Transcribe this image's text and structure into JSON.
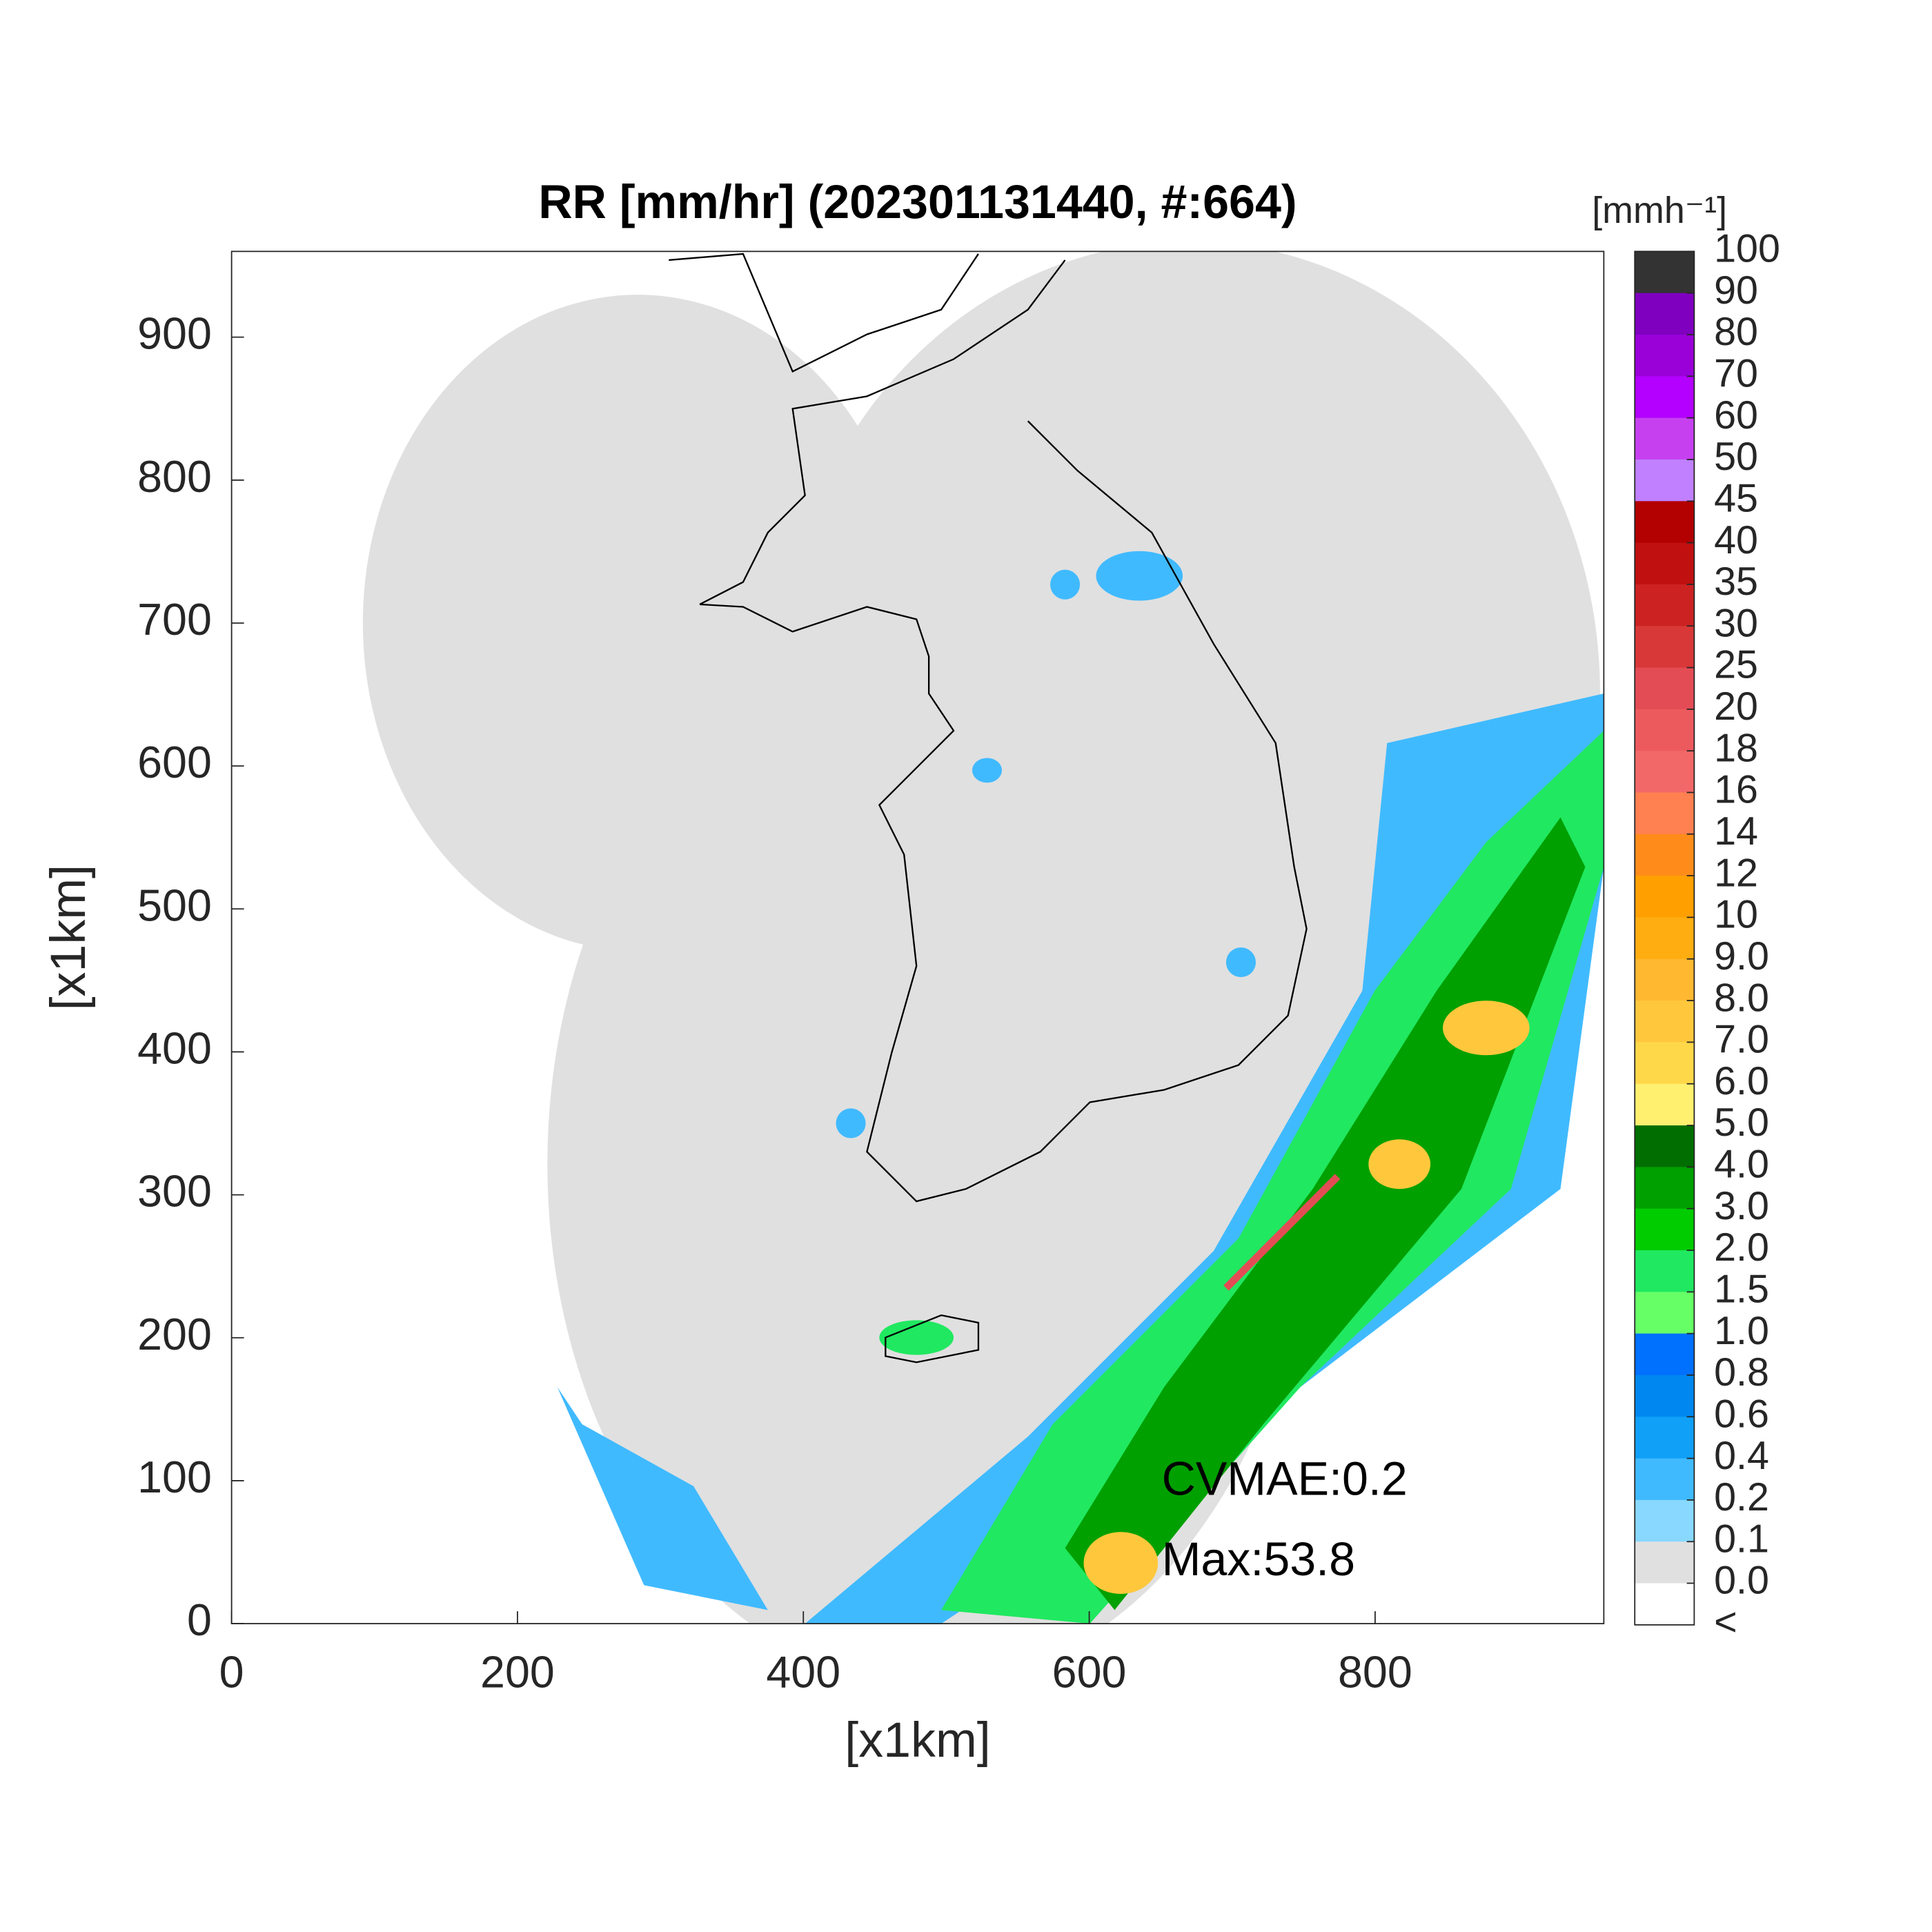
{
  "chart_data": {
    "type": "heatmap",
    "title": "RR [mm/hr] (202301131440, #:664)",
    "xlabel": "[x1km]",
    "ylabel": "[x1km]",
    "xlim": [
      0,
      960
    ],
    "ylim": [
      0,
      960
    ],
    "xticks": [
      0,
      200,
      400,
      600,
      800
    ],
    "yticks": [
      0,
      100,
      200,
      300,
      400,
      500,
      600,
      700,
      800,
      900
    ],
    "annotations": [
      "CVMAE:0.2",
      "Max:53.8"
    ],
    "colorbar": {
      "label": "[mmh⁻¹]",
      "ticks": [
        100,
        90,
        80,
        70,
        60,
        50,
        45,
        40,
        35,
        30,
        25,
        20,
        18,
        16,
        14,
        12,
        10,
        {
          "value": 9,
          "label": "9.0"
        },
        {
          "value": 8,
          "label": "8.0"
        },
        {
          "value": 7,
          "label": "7.0"
        },
        {
          "value": 6,
          "label": "6.0"
        },
        {
          "value": 5,
          "label": "5.0"
        },
        {
          "value": 4,
          "label": "4.0"
        },
        {
          "value": 3,
          "label": "3.0"
        },
        {
          "value": 2,
          "label": "2.0"
        },
        1.5,
        {
          "value": 1,
          "label": "1.0"
        },
        0.8,
        0.6,
        0.4,
        0.2,
        0.1,
        {
          "value": 0,
          "label": "0.0"
        },
        "<"
      ],
      "colors": [
        "#333333",
        "#7f00bf",
        "#9a00d8",
        "#b300ff",
        "#c740f0",
        "#c080ff",
        "#b30000",
        "#c11010",
        "#cc2222",
        "#d93838",
        "#e44c55",
        "#ed5a5e",
        "#f26868",
        "#ff8050",
        "#ff8c1a",
        "#ffa000",
        "#ffad10",
        "#ffb830",
        "#ffc83c",
        "#ffd84a",
        "#fff070",
        "#006e00",
        "#00a000",
        "#00cc00",
        "#20e860",
        "#66ff66",
        "#0070ff",
        "#0088f0",
        "#10a0f8",
        "#40baff",
        "#88d8ff",
        "#e0e0e0",
        "#ffffff"
      ]
    }
  }
}
